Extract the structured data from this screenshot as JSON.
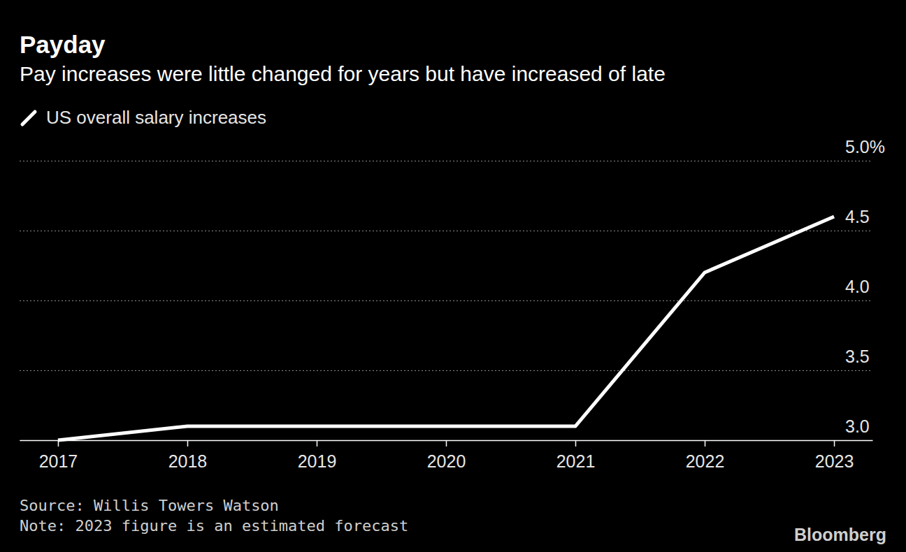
{
  "chart_data": {
    "type": "line",
    "title": "Payday",
    "subtitle": "Pay increases were little changed for years but have increased of late",
    "categories": [
      "2017",
      "2018",
      "2019",
      "2020",
      "2021",
      "2022",
      "2023"
    ],
    "series": [
      {
        "name": "US overall salary increases",
        "color": "#ffffff",
        "values": [
          3.0,
          3.1,
          3.1,
          3.1,
          3.1,
          4.2,
          4.6
        ]
      }
    ],
    "ylim": [
      3.0,
      5.0
    ],
    "yticks": [
      {
        "value": 3.0,
        "label": "3.0"
      },
      3.5,
      {
        "value": 4.0,
        "label": "4.0"
      },
      4.5,
      {
        "value": 5.0,
        "label": "5.0%"
      }
    ],
    "grid": true,
    "legend": "top-left",
    "source": "Source: Willis Towers Watson",
    "note": "Note: 2023 figure is an estimated forecast",
    "credit": "Bloomberg"
  }
}
